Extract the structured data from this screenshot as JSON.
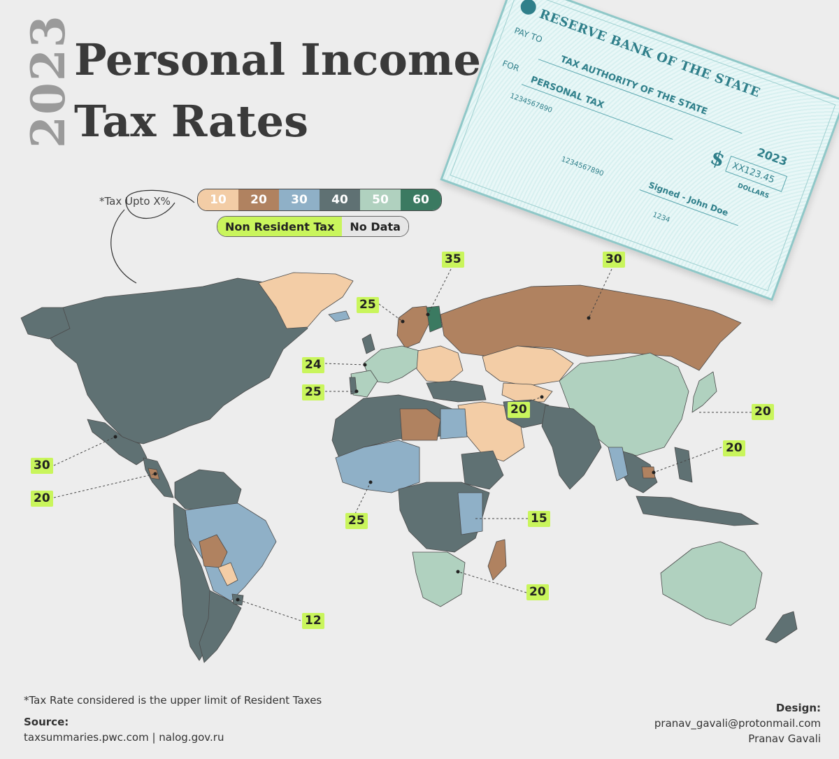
{
  "title": {
    "year": "2023",
    "line1": "Personal Income",
    "line2": "Tax Rates"
  },
  "legend": {
    "caption": "*Tax Upto X%",
    "scale": [
      {
        "label": "10",
        "color": "#f3cda6"
      },
      {
        "label": "20",
        "color": "#b08260"
      },
      {
        "label": "30",
        "color": "#8fb0c7"
      },
      {
        "label": "40",
        "color": "#5f7173"
      },
      {
        "label": "50",
        "color": "#b0d1bf"
      },
      {
        "label": "60",
        "color": "#3b7a61"
      }
    ],
    "non_resident": {
      "label": "Non Resident Tax",
      "color": "#c9f55c"
    },
    "no_data": {
      "label": "No Data",
      "color": "#e6e6e6"
    }
  },
  "annotations": [
    {
      "value": "35",
      "place": "Finland"
    },
    {
      "value": "30",
      "place": "Russia"
    },
    {
      "value": "25",
      "place": "Norway"
    },
    {
      "value": "24",
      "place": "Spain"
    },
    {
      "value": "25",
      "place": "Portugal"
    },
    {
      "value": "20",
      "place": "Afghanistan"
    },
    {
      "value": "20",
      "place": "Taiwan"
    },
    {
      "value": "20",
      "place": "Cambodia"
    },
    {
      "value": "30",
      "place": "Mexico"
    },
    {
      "value": "20",
      "place": "Nicaragua"
    },
    {
      "value": "25",
      "place": "Ghana"
    },
    {
      "value": "15",
      "place": "Kenya"
    },
    {
      "value": "20",
      "place": "Mozambique"
    },
    {
      "value": "12",
      "place": "Uruguay"
    }
  ],
  "cheque": {
    "bank": "RESERVE BANK OF THE STATE",
    "pay_to_label": "PAY TO",
    "pay_to": "TAX AUTHORITY OF THE STATE",
    "for_label": "FOR",
    "for_value": "PERSONAL TAX",
    "year": "2023",
    "account": "1234567890",
    "routing": "1234567890",
    "amount": "XX123.45",
    "currency_symbol": "$",
    "dollars_label": "DOLLARS",
    "signature": "Signed - John Doe",
    "cheque_no": "1234"
  },
  "footnote": "*Tax Rate considered is the upper limit of Resident Taxes",
  "source": {
    "label": "Source:",
    "value": "taxsummaries.pwc.com | nalog.gov.ru"
  },
  "design": {
    "label": "Design:",
    "email": "pranav_gavali@protonmail.com",
    "name": "Pranav Gavali"
  }
}
